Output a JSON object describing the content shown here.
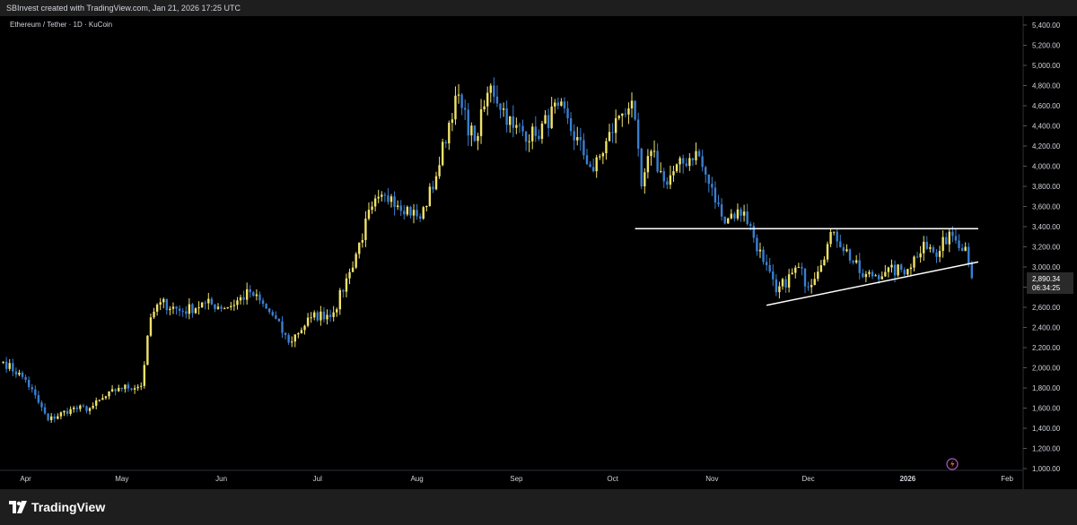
{
  "header": {
    "caption": "SBInvest created with TradingView.com, Jan 21, 2026 17:25 UTC"
  },
  "symbol_label": "Ethereum / Tether · 1D · KuCoin",
  "footer": {
    "brand": "TradingView"
  },
  "colors": {
    "background": "#000000",
    "up_candle": "#f0e36a",
    "down_candle": "#3a7fd0",
    "trendline": "#ffffff",
    "axis_text": "#d1d4dc",
    "price_tag_bg": "#2a2a2a"
  },
  "price_readout": {
    "price": "2,890.34",
    "countdown": "06:34:25"
  },
  "chart_data": {
    "type": "candlestick",
    "interval": "1D",
    "x_tick_labels": [
      "Apr",
      "May",
      "Jun",
      "Jul",
      "Aug",
      "Sep",
      "Oct",
      "Nov",
      "Dec",
      "2026",
      "Feb"
    ],
    "y_tick_labels": [
      "1,000.00",
      "1,200.00",
      "1,400.00",
      "1,600.00",
      "1,800.00",
      "2,000.00",
      "2,200.00",
      "2,400.00",
      "2,600.00",
      "2,800.00",
      "3,000.00",
      "3,200.00",
      "3,400.00",
      "3,600.00",
      "3,800.00",
      "4,000.00",
      "4,200.00",
      "4,400.00",
      "4,600.00",
      "4,800.00",
      "5,000.00",
      "5,200.00",
      "5,400.00"
    ],
    "ylim": [
      1000,
      5400
    ],
    "x_range": [
      "2025-03-24",
      "2026-02-06"
    ],
    "grid": false,
    "trendlines": [
      {
        "name": "resistance",
        "start": {
          "date": "2025-10-08",
          "price": 3380
        },
        "end": {
          "date": "2026-01-23",
          "price": 3380
        }
      },
      {
        "name": "rising support",
        "start": {
          "date": "2025-11-18",
          "price": 2620
        },
        "end": {
          "date": "2026-01-23",
          "price": 3050
        }
      }
    ],
    "anchors": [
      {
        "date": "2025-03-25",
        "price": 2060
      },
      {
        "date": "2025-04-01",
        "price": 1880
      },
      {
        "date": "2025-04-08",
        "price": 1480
      },
      {
        "date": "2025-04-15",
        "price": 1590
      },
      {
        "date": "2025-04-21",
        "price": 1600
      },
      {
        "date": "2025-04-30",
        "price": 1800
      },
      {
        "date": "2025-05-07",
        "price": 1820
      },
      {
        "date": "2025-05-10",
        "price": 2500
      },
      {
        "date": "2025-05-13",
        "price": 2650
      },
      {
        "date": "2025-05-20",
        "price": 2560
      },
      {
        "date": "2025-05-27",
        "price": 2640
      },
      {
        "date": "2025-06-03",
        "price": 2600
      },
      {
        "date": "2025-06-10",
        "price": 2750
      },
      {
        "date": "2025-06-17",
        "price": 2520
      },
      {
        "date": "2025-06-22",
        "price": 2250
      },
      {
        "date": "2025-06-29",
        "price": 2500
      },
      {
        "date": "2025-07-06",
        "price": 2550
      },
      {
        "date": "2025-07-11",
        "price": 2950
      },
      {
        "date": "2025-07-18",
        "price": 3600
      },
      {
        "date": "2025-07-24",
        "price": 3700
      },
      {
        "date": "2025-08-02",
        "price": 3480
      },
      {
        "date": "2025-08-07",
        "price": 3900
      },
      {
        "date": "2025-08-13",
        "price": 4700
      },
      {
        "date": "2025-08-19",
        "price": 4250
      },
      {
        "date": "2025-08-24",
        "price": 4800
      },
      {
        "date": "2025-08-31",
        "price": 4380
      },
      {
        "date": "2025-09-07",
        "price": 4300
      },
      {
        "date": "2025-09-14",
        "price": 4600
      },
      {
        "date": "2025-09-25",
        "price": 3950
      },
      {
        "date": "2025-10-03",
        "price": 4500
      },
      {
        "date": "2025-10-07",
        "price": 4650
      },
      {
        "date": "2025-10-10",
        "price": 3800
      },
      {
        "date": "2025-10-13",
        "price": 4150
      },
      {
        "date": "2025-10-17",
        "price": 3850
      },
      {
        "date": "2025-10-27",
        "price": 4150
      },
      {
        "date": "2025-11-04",
        "price": 3500
      },
      {
        "date": "2025-11-11",
        "price": 3550
      },
      {
        "date": "2025-11-17",
        "price": 3050
      },
      {
        "date": "2025-11-21",
        "price": 2750
      },
      {
        "date": "2025-11-28",
        "price": 3000
      },
      {
        "date": "2025-12-01",
        "price": 2800
      },
      {
        "date": "2025-12-09",
        "price": 3350
      },
      {
        "date": "2025-12-18",
        "price": 2900
      },
      {
        "date": "2025-12-25",
        "price": 2950
      },
      {
        "date": "2026-01-01",
        "price": 2980
      },
      {
        "date": "2026-01-06",
        "price": 3250
      },
      {
        "date": "2026-01-10",
        "price": 3100
      },
      {
        "date": "2026-01-14",
        "price": 3350
      },
      {
        "date": "2026-01-19",
        "price": 3200
      },
      {
        "date": "2026-01-21",
        "price": 2890
      }
    ]
  }
}
